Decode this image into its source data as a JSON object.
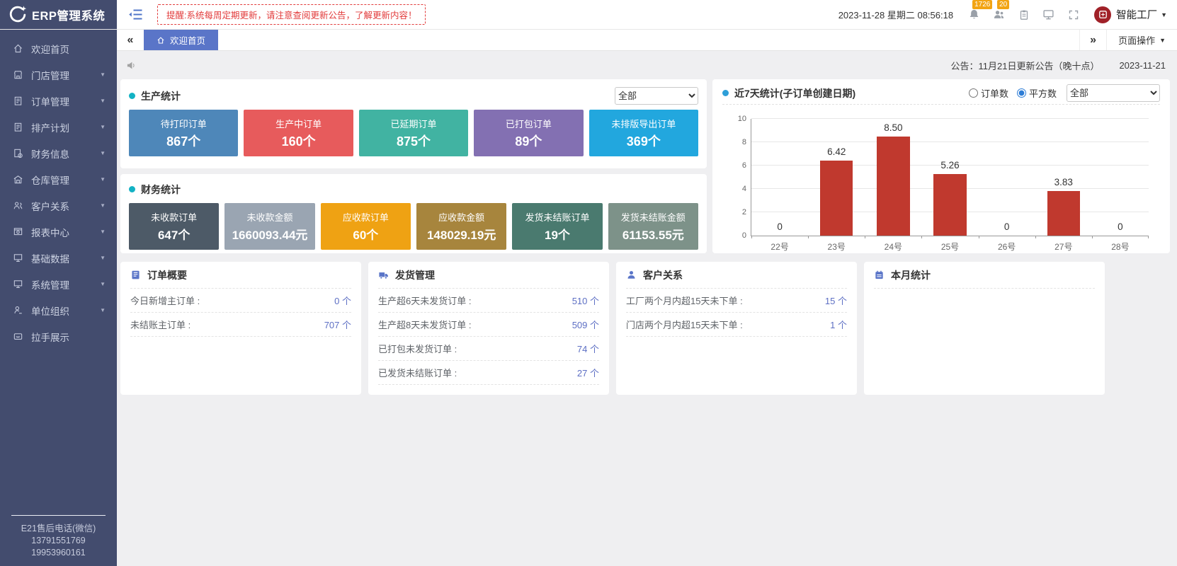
{
  "header": {
    "app_title": "ERP管理系统",
    "reminder": "提醒:系统每周定期更新，请注意查阅更新公告，了解更新内容！",
    "datetime": "2023-11-28 星期二 08:56:18",
    "bell_badge": "1726",
    "contacts_badge": "20",
    "user_name": "智能工厂"
  },
  "tabbar": {
    "active_tab": "欢迎首页",
    "page_actions": "页面操作"
  },
  "announcement": {
    "text": "公告：11月21日更新公告（晚十点）",
    "date": "2023-11-21"
  },
  "sidebar": {
    "items": [
      {
        "label": "欢迎首页",
        "icon": "home",
        "caret": false
      },
      {
        "label": "门店管理",
        "icon": "store",
        "caret": true
      },
      {
        "label": "订单管理",
        "icon": "order",
        "caret": true
      },
      {
        "label": "排产计划",
        "icon": "plan",
        "caret": true
      },
      {
        "label": "财务信息",
        "icon": "finance",
        "caret": true
      },
      {
        "label": "仓库管理",
        "icon": "warehouse",
        "caret": true
      },
      {
        "label": "客户关系",
        "icon": "customer",
        "caret": true
      },
      {
        "label": "报表中心",
        "icon": "report",
        "caret": true
      },
      {
        "label": "基础数据",
        "icon": "data",
        "caret": true
      },
      {
        "label": "系统管理",
        "icon": "system",
        "caret": true
      },
      {
        "label": "单位组织",
        "icon": "org",
        "caret": true
      },
      {
        "label": "拉手展示",
        "icon": "handshake",
        "caret": false
      }
    ],
    "footer": [
      "E21售后电话(微信)",
      "13791551769",
      "19953960161"
    ]
  },
  "production": {
    "title": "生产统计",
    "filter": "全部",
    "cards": [
      {
        "label": "待打印订单",
        "value": "867个",
        "color": "#4e87b9"
      },
      {
        "label": "生产中订单",
        "value": "160个",
        "color": "#e75b5c"
      },
      {
        "label": "已延期订单",
        "value": "875个",
        "color": "#41b3a2"
      },
      {
        "label": "已打包订单",
        "value": "89个",
        "color": "#8370b2"
      },
      {
        "label": "未排版导出订单",
        "value": "369个",
        "color": "#22a7de"
      }
    ]
  },
  "finance": {
    "title": "财务统计",
    "cards": [
      {
        "label": "未收款订单",
        "value": "647个",
        "color": "#4d5a67"
      },
      {
        "label": "未收款金额",
        "value": "1660093.44元",
        "color": "#9aa5b2"
      },
      {
        "label": "应收款订单",
        "value": "60个",
        "color": "#efa213"
      },
      {
        "label": "应收款金额",
        "value": "148029.19元",
        "color": "#a7853d"
      },
      {
        "label": "发货未结账订单",
        "value": "19个",
        "color": "#4a7a6f"
      },
      {
        "label": "发货未结账金额",
        "value": "61153.55元",
        "color": "#7d9289"
      }
    ]
  },
  "chart": {
    "title": "近7天统计(子订单创建日期)",
    "radios": [
      {
        "label": "订单数",
        "selected": false
      },
      {
        "label": "平方数",
        "selected": true
      }
    ],
    "filter": "全部",
    "chart_data": {
      "type": "bar",
      "categories": [
        "22号",
        "23号",
        "24号",
        "25号",
        "26号",
        "27号",
        "28号"
      ],
      "values": [
        0,
        6.42,
        8.5,
        5.26,
        0,
        3.83,
        0
      ],
      "value_labels": [
        "0",
        "6.42",
        "8.50",
        "5.26",
        "0",
        "3.83",
        "0"
      ],
      "ylim": [
        0,
        10
      ],
      "yticks": [
        0,
        2,
        4,
        6,
        8,
        10
      ],
      "grid": true,
      "bar_color": "#c0392e",
      "legend": "none"
    }
  },
  "panels": [
    {
      "key": "order-summary",
      "title": "订单概要",
      "icon": "book",
      "rows": [
        {
          "label": "今日新增主订单 :",
          "value": "0 个"
        },
        {
          "label": "未结账主订单 :",
          "value": "707 个"
        }
      ]
    },
    {
      "key": "shipping",
      "title": "发货管理",
      "icon": "truck",
      "rows": [
        {
          "label": "生产超6天未发货订单 :",
          "value": "510 个"
        },
        {
          "label": "生产超8天未发货订单 :",
          "value": "509 个"
        },
        {
          "label": "已打包未发货订单 :",
          "value": "74 个"
        },
        {
          "label": "已发货未结账订单 :",
          "value": "27 个"
        }
      ]
    },
    {
      "key": "customer",
      "title": "客户关系",
      "icon": "person",
      "rows": [
        {
          "label": "工厂两个月内超15天未下单 :",
          "value": "15 个"
        },
        {
          "label": "门店两个月内超15天未下单 :",
          "value": "1 个"
        }
      ]
    },
    {
      "key": "month",
      "title": "本月统计",
      "icon": "calendar",
      "rows": []
    }
  ],
  "colors": {
    "sidebar_bg": "#434c6e",
    "accent_blue": "#5a75c8",
    "value_blue": "#5d6fc4",
    "bar_red": "#c0392e",
    "badge_orange": "#f2a413",
    "reminder_red": "#e23c3c",
    "dot_teal": "#13b2c4",
    "dot_blue": "#2e9fd8"
  }
}
